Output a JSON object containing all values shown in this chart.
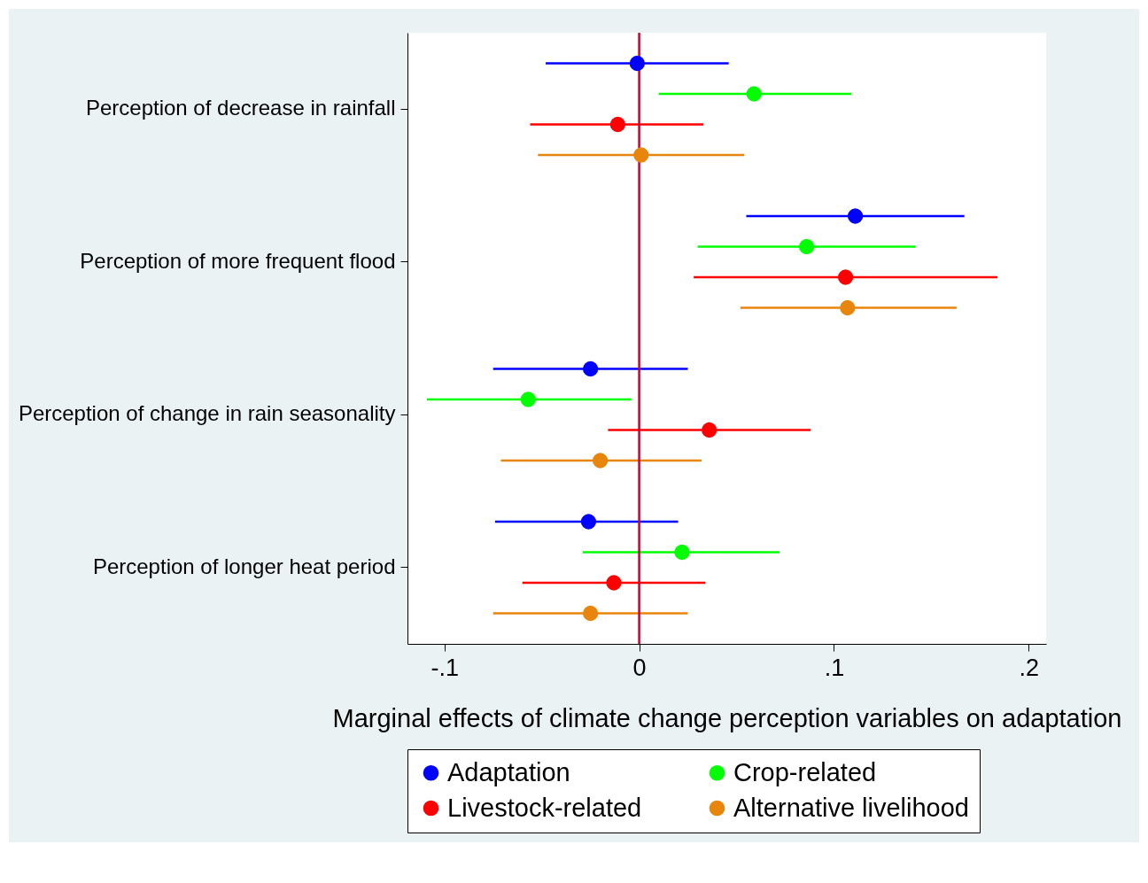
{
  "chart_data": {
    "type": "scatter",
    "orientation": "horizontal",
    "xlabel": "Marginal effects of climate change perception variables on adaptation",
    "categories": [
      "Perception of decrease in rainfall",
      "Perception of more frequent flood",
      "Perception of change in rain seasonality",
      "Perception of longer heat period"
    ],
    "xlim": [
      -0.119,
      0.209
    ],
    "xticks": [
      {
        "value": -0.1,
        "label": "-.1"
      },
      0,
      {
        "value": 0.1,
        "label": ".1"
      },
      {
        "value": 0.2,
        "label": ".2"
      }
    ],
    "series": [
      {
        "name": "Adaptation",
        "color": "#0000ff",
        "values": [
          -0.001,
          0.111,
          -0.025,
          -0.026
        ],
        "errors": [
          [
            -0.048,
            0.046
          ],
          [
            0.055,
            0.167
          ],
          [
            -0.075,
            0.025
          ],
          [
            -0.074,
            0.02
          ]
        ]
      },
      {
        "name": "Crop-related",
        "color": "#00ff00",
        "values": [
          0.059,
          0.086,
          -0.057,
          0.022
        ],
        "errors": [
          [
            0.01,
            0.109
          ],
          [
            0.03,
            0.142
          ],
          [
            -0.109,
            -0.004
          ],
          [
            -0.029,
            0.072
          ]
        ]
      },
      {
        "name": "Livestock-related",
        "color": "#ff0000",
        "values": [
          -0.011,
          0.106,
          0.036,
          -0.013
        ],
        "errors": [
          [
            -0.056,
            0.033
          ],
          [
            0.028,
            0.184
          ],
          [
            -0.016,
            0.088
          ],
          [
            -0.06,
            0.034
          ]
        ]
      },
      {
        "name": "Alternative livelihood",
        "color": "#e8850c",
        "values": [
          0.001,
          0.107,
          -0.02,
          -0.025
        ],
        "errors": [
          [
            -0.052,
            0.054
          ],
          [
            0.052,
            0.163
          ],
          [
            -0.071,
            0.032
          ],
          [
            -0.075,
            0.025
          ]
        ]
      }
    ],
    "ref_lines": [
      {
        "axis": "x",
        "value": 0,
        "color": "#c10534"
      }
    ],
    "marker": "circle",
    "grid": false,
    "legend": "bottom"
  }
}
